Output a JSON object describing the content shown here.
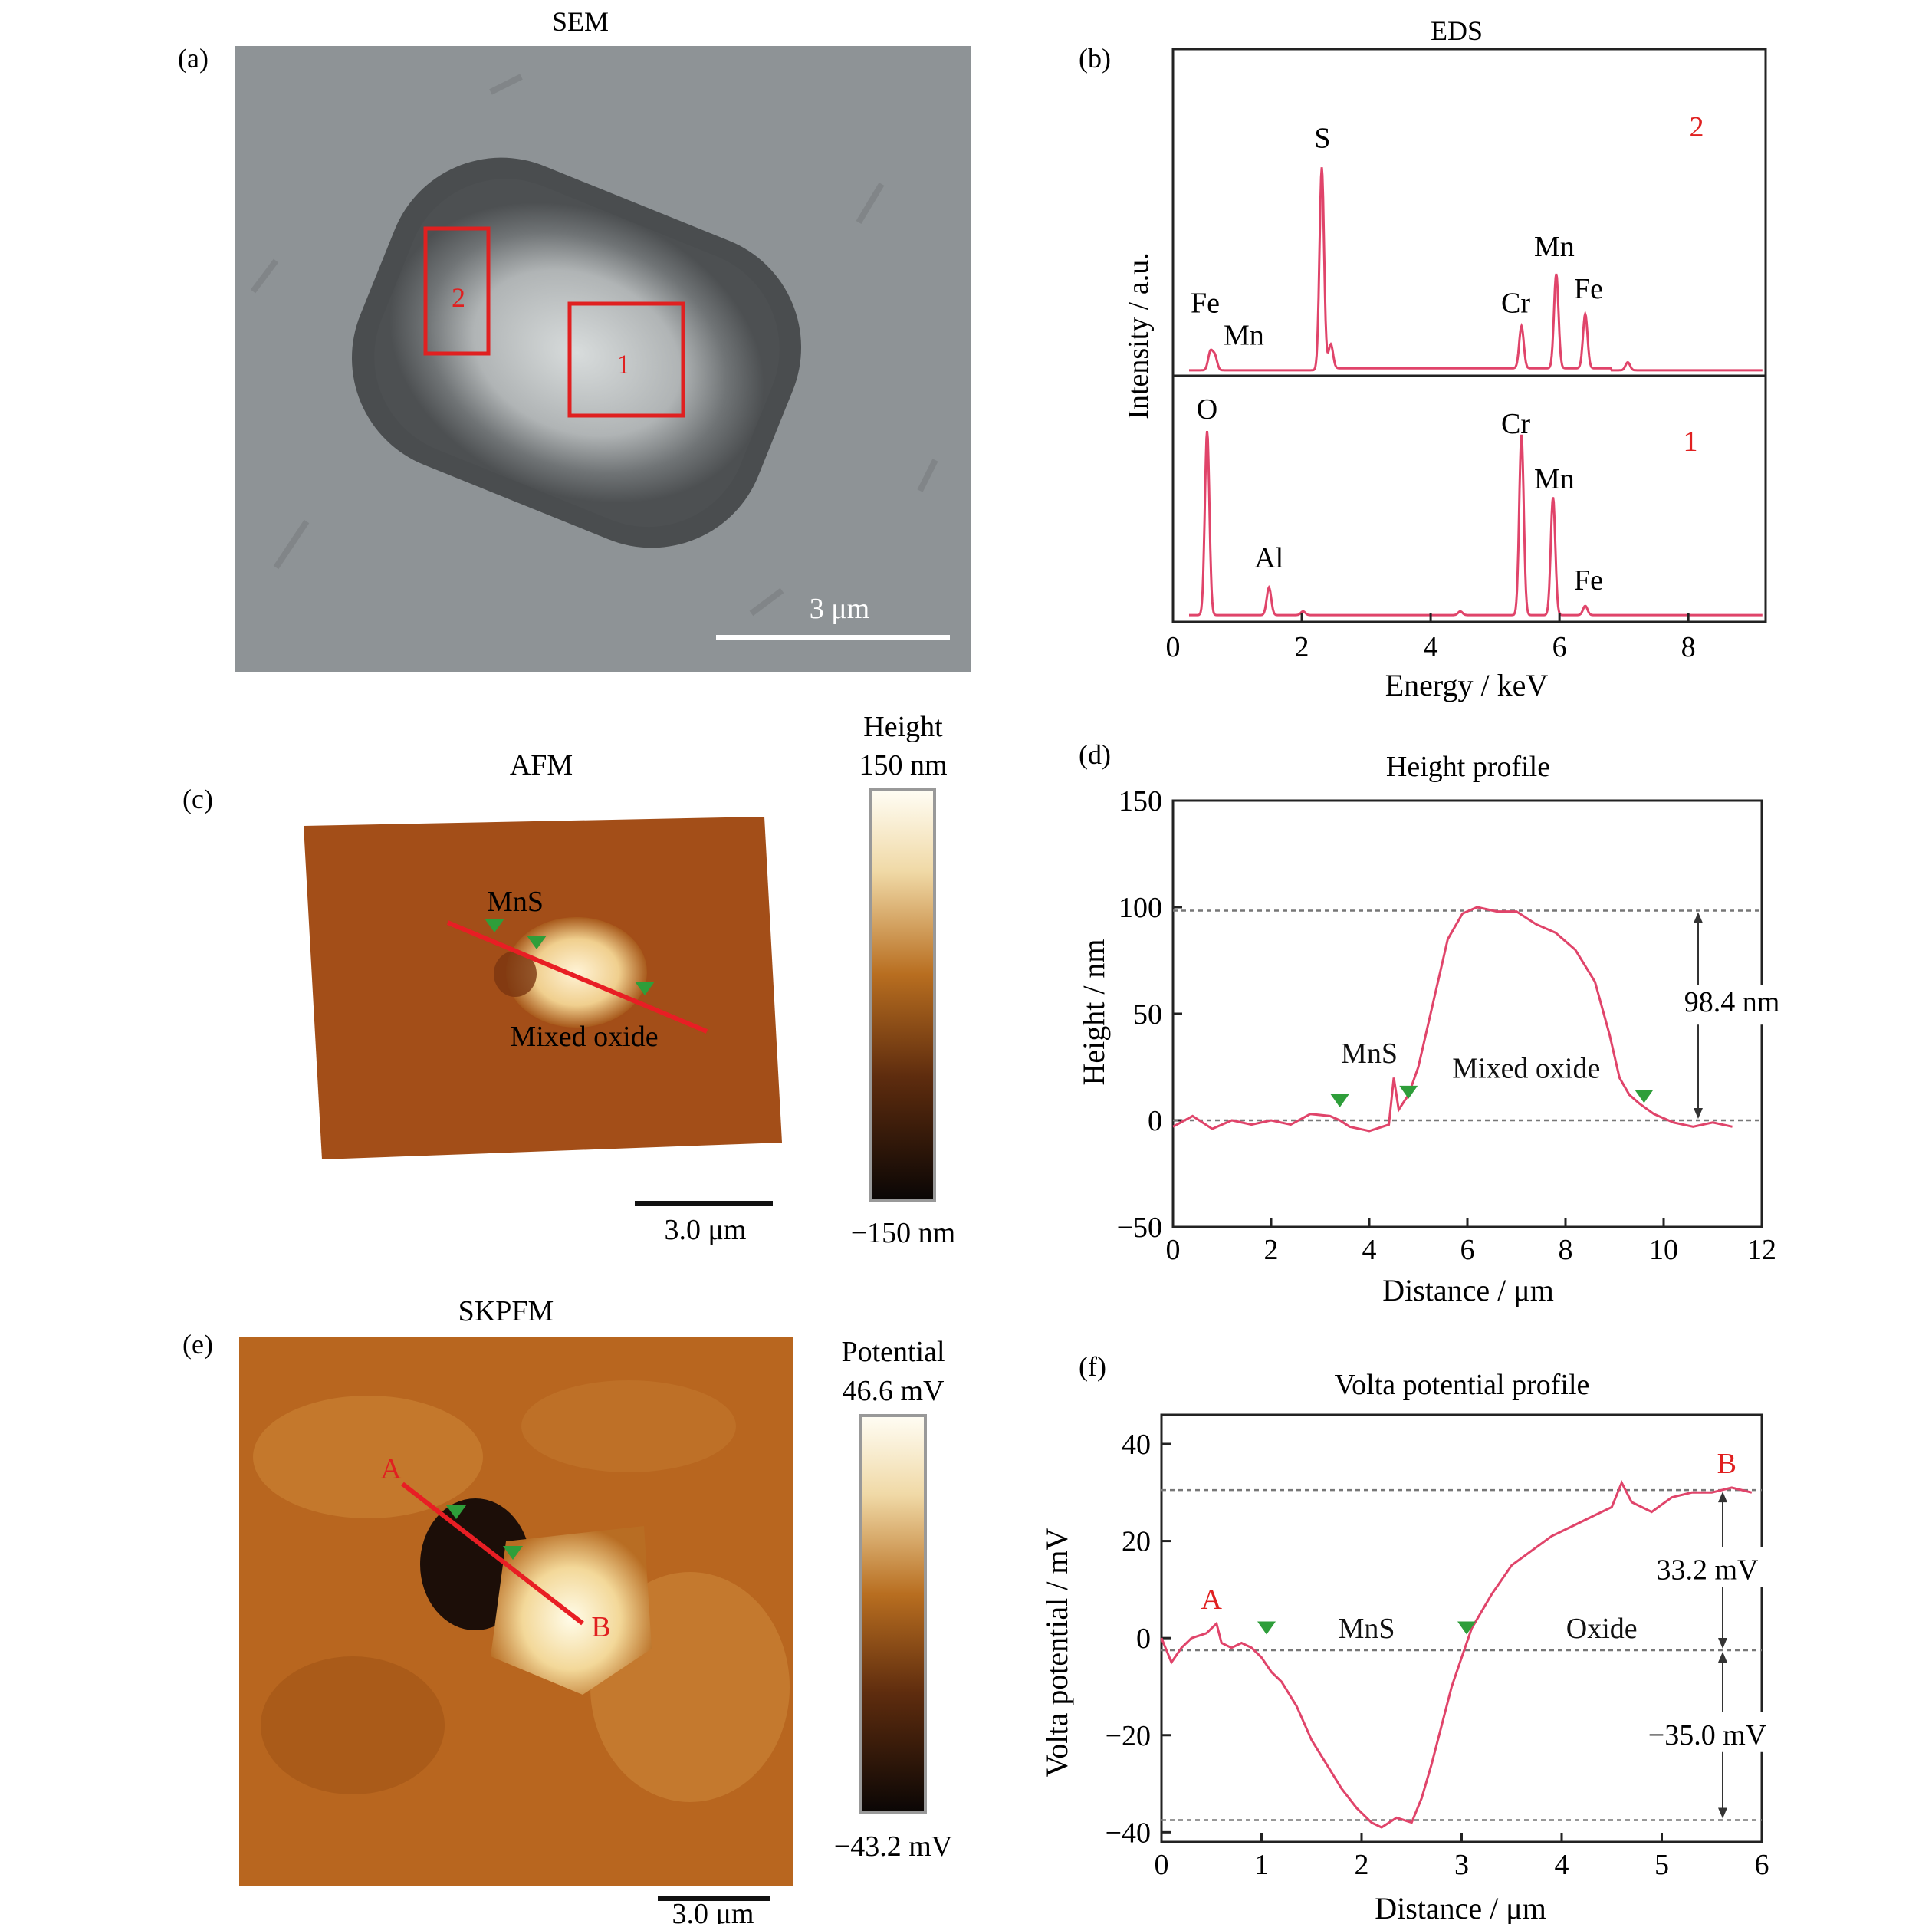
{
  "panels": {
    "a": {
      "label": "(a)",
      "title": "SEM",
      "scalebar": "3 μm",
      "box1": "1",
      "box2": "2"
    },
    "b": {
      "label": "(b)",
      "title": "EDS"
    },
    "c": {
      "label": "(c)",
      "title": "AFM",
      "mns": "MnS",
      "oxide": "Mixed oxide",
      "scalebar": "3.0 μm",
      "cb_title": "Height",
      "cb_max": "150 nm",
      "cb_min": "−150 nm"
    },
    "d": {
      "label": "(d)",
      "title": "Height profile"
    },
    "e": {
      "label": "(e)",
      "title": "SKPFM",
      "pA": "A",
      "pB": "B",
      "scalebar": "3.0 μm",
      "cb_title": "Potential",
      "cb_max": "46.6 mV",
      "cb_min": "−43.2 mV"
    },
    "f": {
      "label": "(f)",
      "title": "Volta potential profile"
    }
  },
  "colors": {
    "trace": "#e0446a",
    "boxes": "#e02020",
    "marker": "#2e9e3a",
    "sem_bg": "#8e9396"
  },
  "chart_data": [
    {
      "id": "eds",
      "type": "line",
      "xlabel": "Energy / keV",
      "ylabel": "Intensity / a.u.",
      "xlim": [
        0,
        9.2
      ],
      "xticks": [
        0,
        2,
        4,
        6,
        8
      ],
      "subplots": [
        {
          "spectrum": "2",
          "peaks": [
            {
              "x": 0.58,
              "h": 0.09
            },
            {
              "x": 0.65,
              "h": 0.07
            },
            {
              "x": 2.31,
              "h": 1.0
            },
            {
              "x": 2.45,
              "h": 0.12
            },
            {
              "x": 5.41,
              "h": 0.21
            },
            {
              "x": 5.95,
              "h": 0.47
            },
            {
              "x": 6.4,
              "h": 0.27
            },
            {
              "x": 7.06,
              "h": 0.04
            }
          ],
          "labels": [
            {
              "text": "Fe",
              "x": 0.5,
              "h": 0.3
            },
            {
              "text": "Mn",
              "x": 1.1,
              "h": 0.14
            },
            {
              "text": "S",
              "x": 2.32,
              "h": 1.12
            },
            {
              "text": "Cr",
              "x": 5.32,
              "h": 0.3
            },
            {
              "text": "Mn",
              "x": 5.92,
              "h": 0.58
            },
            {
              "text": "Fe",
              "x": 6.45,
              "h": 0.37
            }
          ]
        },
        {
          "spectrum": "1",
          "peaks": [
            {
              "x": 0.53,
              "h": 1.0
            },
            {
              "x": 1.49,
              "h": 0.15
            },
            {
              "x": 5.41,
              "h": 0.98
            },
            {
              "x": 5.9,
              "h": 0.64
            },
            {
              "x": 6.4,
              "h": 0.05
            },
            {
              "x": 2.02,
              "h": 0.02
            },
            {
              "x": 4.46,
              "h": 0.02
            }
          ],
          "labels": [
            {
              "text": "O",
              "x": 0.53,
              "h": 1.08
            },
            {
              "text": "Al",
              "x": 1.49,
              "h": 0.27
            },
            {
              "text": "Cr",
              "x": 5.32,
              "h": 1.0
            },
            {
              "text": "Mn",
              "x": 5.92,
              "h": 0.7
            },
            {
              "text": "Fe",
              "x": 6.45,
              "h": 0.15
            }
          ]
        }
      ]
    },
    {
      "id": "height",
      "type": "line",
      "title": "Height profile",
      "xlabel": "Distance / μm",
      "ylabel": "Height / nm",
      "xlim": [
        0,
        12
      ],
      "ylim": [
        -50,
        150
      ],
      "xticks": [
        0,
        2,
        4,
        6,
        8,
        10,
        12
      ],
      "yticks": [
        -50,
        0,
        50,
        100,
        150
      ],
      "x": [
        0,
        0.4,
        0.8,
        1.2,
        1.6,
        2.0,
        2.4,
        2.8,
        3.2,
        3.4,
        3.6,
        4.0,
        4.4,
        4.5,
        4.6,
        4.8,
        5.0,
        5.3,
        5.6,
        5.9,
        6.2,
        6.6,
        7.0,
        7.4,
        7.8,
        8.2,
        8.6,
        8.9,
        9.1,
        9.3,
        9.5,
        9.8,
        10.2,
        10.6,
        11.0,
        11.4
      ],
      "values": [
        -3,
        2,
        -4,
        0,
        -2,
        0,
        -2,
        3,
        2,
        0,
        -3,
        -5,
        -2,
        20,
        5,
        12,
        25,
        55,
        85,
        97,
        100,
        98,
        98,
        92,
        88,
        80,
        65,
        40,
        20,
        12,
        8,
        3,
        -1,
        -3,
        -1,
        -3
      ],
      "annotation": {
        "text": "98.4 nm",
        "y_top": 98.4,
        "y_bottom": 0
      },
      "labels": [
        {
          "text": "MnS",
          "x": 4.0,
          "y": 27
        },
        {
          "text": "Mixed oxide",
          "x": 7.2,
          "y": 20
        }
      ],
      "markers": [
        {
          "x": 3.4,
          "y": 9
        },
        {
          "x": 4.8,
          "y": 13
        },
        {
          "x": 9.6,
          "y": 11
        }
      ]
    },
    {
      "id": "volta",
      "type": "line",
      "title": "Volta potential profile",
      "xlabel": "Distance / μm",
      "ylabel": "Volta potential / mV",
      "xlim": [
        0,
        6
      ],
      "ylim": [
        -42,
        46
      ],
      "xticks": [
        0,
        1,
        2,
        3,
        4,
        5,
        6
      ],
      "yticks": [
        -40,
        -20,
        0,
        20,
        40
      ],
      "x": [
        0,
        0.1,
        0.2,
        0.3,
        0.45,
        0.55,
        0.6,
        0.7,
        0.8,
        0.9,
        1.0,
        1.1,
        1.2,
        1.35,
        1.5,
        1.65,
        1.8,
        1.95,
        2.1,
        2.2,
        2.35,
        2.5,
        2.6,
        2.7,
        2.8,
        2.9,
        3.0,
        3.1,
        3.3,
        3.5,
        3.7,
        3.9,
        4.1,
        4.3,
        4.5,
        4.6,
        4.7,
        4.9,
        5.1,
        5.3,
        5.5,
        5.7,
        5.9
      ],
      "values": [
        0,
        -5,
        -2,
        0,
        1,
        3,
        -1,
        -2,
        -1,
        -2,
        -4,
        -7,
        -9,
        -14,
        -21,
        -26,
        -31,
        -35,
        -38,
        -39,
        -37,
        -38,
        -33,
        -26,
        -18,
        -10,
        -4,
        2,
        9,
        15,
        18,
        21,
        23,
        25,
        27,
        32,
        28,
        26,
        29,
        30,
        30,
        31,
        30
      ],
      "annotations": [
        {
          "text": "33.2 mV",
          "y_top": 30.5,
          "y_bottom": -2.5
        },
        {
          "text": "−35.0 mV",
          "y_top": -2.5,
          "y_bottom": -37.5
        }
      ],
      "labels": [
        {
          "text": "A",
          "x": 0.5,
          "y": 6
        },
        {
          "text": "MnS",
          "x": 2.05,
          "y": 0
        },
        {
          "text": "Oxide",
          "x": 4.4,
          "y": 0
        },
        {
          "text": "B",
          "x": 5.65,
          "y": 34
        }
      ],
      "markers": [
        {
          "x": 1.05,
          "y": 2
        },
        {
          "x": 3.05,
          "y": 2
        }
      ]
    }
  ]
}
